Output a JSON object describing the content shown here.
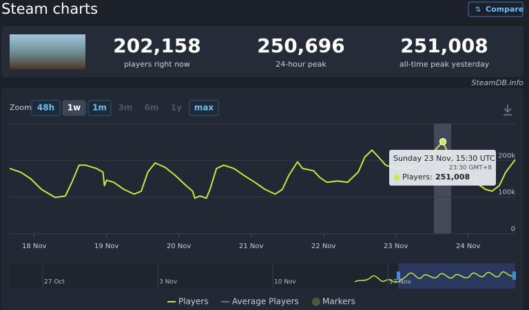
{
  "header": {
    "title": "Steam charts",
    "compare": "Compare"
  },
  "stats": [
    {
      "value": "202,158",
      "label": "players right now"
    },
    {
      "value": "250,696",
      "label": "24-hour peak"
    },
    {
      "value": "251,008",
      "label": "all-time peak yesterday"
    }
  ],
  "source": "SteamDB.info",
  "zoom": {
    "label": "Zoom",
    "options": [
      "48h",
      "1w",
      "1m",
      "3m",
      "6m",
      "1y",
      "max"
    ]
  },
  "navigator": {
    "labels": [
      "27 Oct",
      "3 Nov",
      "10 Nov",
      "17 Nov"
    ]
  },
  "chart_data": {
    "type": "line",
    "x": [
      17.66,
      17.81,
      17.95,
      18.1,
      18.29,
      18.43,
      18.52,
      18.62,
      18.71,
      18.86,
      18.95,
      18.97,
      19.0,
      19.1,
      19.24,
      19.38,
      19.48,
      19.57,
      19.67,
      19.81,
      19.95,
      20.1,
      20.19,
      20.22,
      20.29,
      20.38,
      20.43,
      20.52,
      20.62,
      20.76,
      20.9,
      21.05,
      21.19,
      21.33,
      21.43,
      21.52,
      21.64,
      21.71,
      21.86,
      21.95,
      22.05,
      22.19,
      22.33,
      22.48,
      22.57,
      22.67,
      22.76,
      22.86,
      23.0,
      23.14,
      23.29,
      23.43,
      23.57,
      23.65,
      23.71,
      23.81,
      23.95,
      24.1,
      24.24,
      24.33,
      24.43,
      24.52,
      24.65
    ],
    "series": [
      {
        "name": "Players",
        "color": "#c6ec3c",
        "values": [
          178000,
          168000,
          150000,
          121000,
          99000,
          103000,
          140000,
          187000,
          187000,
          178000,
          168000,
          131000,
          146000,
          140000,
          121000,
          108000,
          116000,
          168000,
          193000,
          181000,
          159000,
          131000,
          116000,
          97000,
          103000,
          97000,
          121000,
          178000,
          187000,
          178000,
          159000,
          140000,
          121000,
          108000,
          121000,
          159000,
          196000,
          178000,
          172000,
          153000,
          140000,
          144000,
          140000,
          168000,
          209000,
          228000,
          209000,
          187000,
          178000,
          178000,
          187000,
          206000,
          234000,
          251008,
          224000,
          187000,
          159000,
          140000,
          121000,
          116000,
          131000,
          168000,
          202158
        ]
      }
    ],
    "xlim": [
      17.66,
      24.65
    ],
    "xticks": [
      {
        "value": 18,
        "label": "18 Nov"
      },
      {
        "value": 19,
        "label": "19 Nov"
      },
      {
        "value": 20,
        "label": "20 Nov"
      },
      {
        "value": 21,
        "label": "21 Nov"
      },
      {
        "value": 22,
        "label": "22 Nov"
      },
      {
        "value": 23,
        "label": "23 Nov"
      },
      {
        "value": 24,
        "label": "24 Nov"
      }
    ],
    "ylim": [
      0,
      300000
    ],
    "yticks": [
      0,
      {
        "value": 100000,
        "label": "100k"
      },
      {
        "value": 200000,
        "label": "200k"
      }
    ],
    "grid": true,
    "tooltip": {
      "title": "Sunday 23 Nov, 15:30 UTC",
      "subtitle": "23:30 GMT+8",
      "label": "Players:",
      "value": "251,008"
    },
    "legend_extra": [
      "Average Players",
      "Markers"
    ]
  }
}
